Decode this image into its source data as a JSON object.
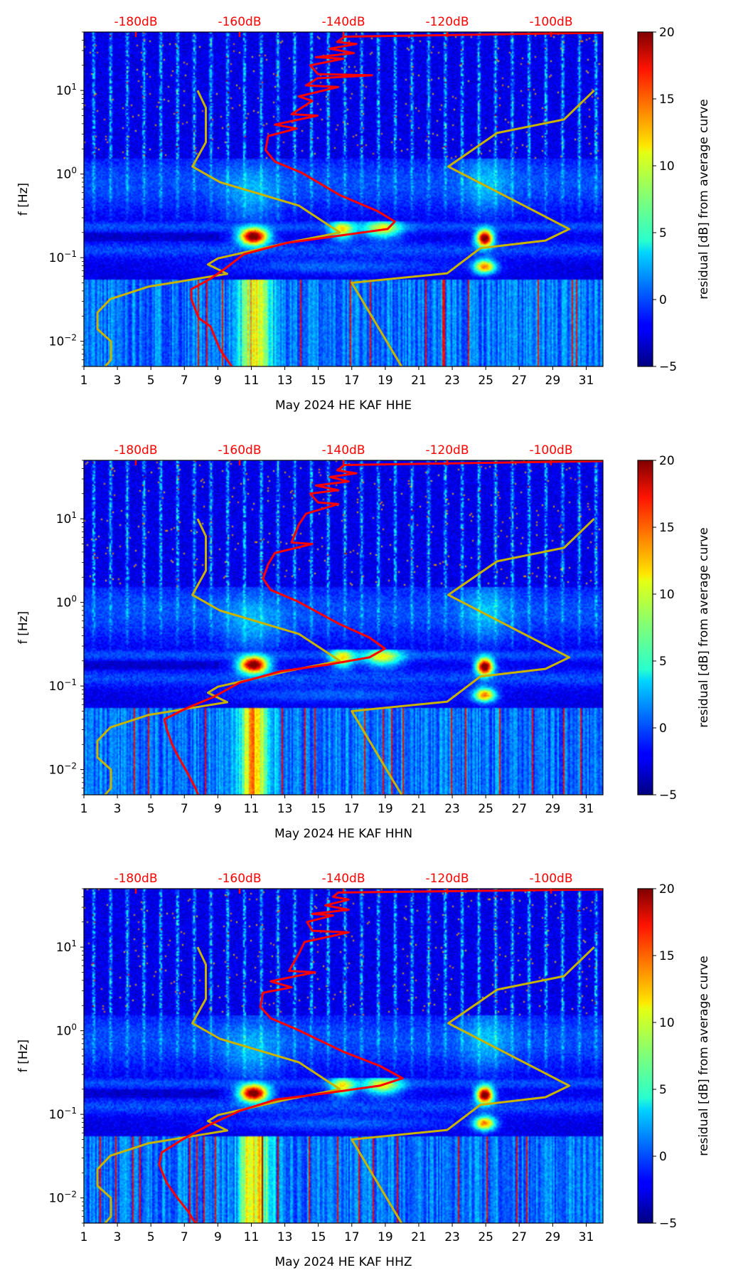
{
  "chart_data": [
    {
      "type": "heatmap",
      "xlabel": "May 2024 HE KAF  HHE",
      "ylabel": "f [Hz]",
      "xlim": [
        1,
        32
      ],
      "ylim": [
        0.005,
        50
      ],
      "yscale": "log",
      "xticks": [
        "1",
        "3",
        "5",
        "7",
        "9",
        "11",
        "13",
        "15",
        "17",
        "19",
        "21",
        "23",
        "25",
        "27",
        "29",
        "31"
      ],
      "yticks": [
        {
          "base": "10",
          "exp": "1",
          "value": 10
        },
        {
          "base": "10",
          "exp": "0",
          "value": 1
        },
        {
          "base": "10",
          "exp": "−1",
          "value": 0.1
        },
        {
          "base": "10",
          "exp": "−2",
          "value": 0.01
        }
      ],
      "top_axis": {
        "range_db": [
          -190,
          -90
        ],
        "ticks": [
          {
            "label": "-180dB",
            "value": -180
          },
          {
            "label": "-160dB",
            "value": -160
          },
          {
            "label": "-140dB",
            "value": -140
          },
          {
            "label": "-120dB",
            "value": -120
          },
          {
            "label": "-100dB",
            "value": -100
          }
        ],
        "color": "#ff0000"
      },
      "colorbar": {
        "label": "residual [dB] from average curve",
        "range": [
          -5,
          20
        ],
        "ticks": [
          "20",
          "15",
          "10",
          "5",
          "0",
          "−5"
        ],
        "colormap": "jet"
      },
      "lines": [
        {
          "role": "low-noise-model",
          "color": "#c8b400",
          "points": [
            [
              -168.1,
              10
            ],
            [
              -166.5,
              6.2
            ],
            [
              -166.5,
              2.4
            ],
            [
              -169.1,
              1.23
            ],
            [
              -163.8,
              0.8
            ],
            [
              -148.6,
              0.42
            ],
            [
              -140.7,
              0.2
            ],
            [
              -150.9,
              0.15
            ],
            [
              -164.2,
              0.098
            ],
            [
              -166.1,
              0.083
            ],
            [
              -162.4,
              0.064
            ],
            [
              -177.6,
              0.045
            ],
            [
              -184.9,
              0.032
            ],
            [
              -187.4,
              0.022
            ],
            [
              -187.4,
              0.014
            ],
            [
              -184.8,
              0.01
            ],
            [
              -184.8,
              0.006
            ],
            [
              -185.9,
              0.005
            ]
          ]
        },
        {
          "role": "high-noise-model",
          "color": "#c8b400",
          "points": [
            [
              -91.7,
              10
            ],
            [
              -97.5,
              4.5
            ],
            [
              -110.4,
              3.1
            ],
            [
              -119.8,
              1.23
            ],
            [
              -96.5,
              0.22
            ],
            [
              -101.1,
              0.16
            ],
            [
              -113.6,
              0.13
            ],
            [
              -120,
              0.065
            ],
            [
              -138.4,
              0.05
            ],
            [
              -128.8,
              0.005
            ]
          ]
        },
        {
          "role": "average-curve",
          "color": "#ff0000",
          "points": [
            [
              -90,
              49
            ],
            [
              -139.8,
              44
            ],
            [
              -141.2,
              38
            ],
            [
              -137.5,
              36
            ],
            [
              -142.6,
              31.6
            ],
            [
              -138,
              28
            ],
            [
              -145.3,
              25
            ],
            [
              -140,
              24
            ],
            [
              -146.4,
              20
            ],
            [
              -144.9,
              15.7
            ],
            [
              -134.5,
              15.2
            ],
            [
              -145,
              14
            ],
            [
              -147.2,
              11.5
            ],
            [
              -141,
              11
            ],
            [
              -148.6,
              8.5
            ],
            [
              -146,
              7.5
            ],
            [
              -150,
              5.2
            ],
            [
              -145,
              5
            ],
            [
              -153.2,
              3.9
            ],
            [
              -149,
              3.5
            ],
            [
              -154.5,
              2.85
            ],
            [
              -155,
              1.93
            ],
            [
              -153.2,
              1.41
            ],
            [
              -148.1,
              1.04
            ],
            [
              -140.7,
              0.56
            ],
            [
              -133.4,
              0.36
            ],
            [
              -130.1,
              0.27
            ],
            [
              -131.5,
              0.22
            ],
            [
              -141.7,
              0.18
            ],
            [
              -150.9,
              0.15
            ],
            [
              -159.2,
              0.11
            ],
            [
              -162.8,
              0.074
            ],
            [
              -165.6,
              0.056
            ],
            [
              -169.3,
              0.042
            ],
            [
              -169.3,
              0.032
            ],
            [
              -167.9,
              0.019
            ],
            [
              -165.6,
              0.015
            ],
            [
              -163.8,
              0.008
            ],
            [
              -161.9,
              0.0054
            ],
            [
              -161.5,
              0.005
            ]
          ]
        }
      ]
    },
    {
      "type": "heatmap",
      "xlabel": "May 2024 HE KAF  HHN",
      "ylabel": "f [Hz]",
      "xlim": [
        1,
        32
      ],
      "ylim": [
        0.005,
        50
      ],
      "yscale": "log",
      "xticks": [
        "1",
        "3",
        "5",
        "7",
        "9",
        "11",
        "13",
        "15",
        "17",
        "19",
        "21",
        "23",
        "25",
        "27",
        "29",
        "31"
      ],
      "yticks": [
        {
          "base": "10",
          "exp": "1",
          "value": 10
        },
        {
          "base": "10",
          "exp": "0",
          "value": 1
        },
        {
          "base": "10",
          "exp": "−1",
          "value": 0.1
        },
        {
          "base": "10",
          "exp": "−2",
          "value": 0.01
        }
      ],
      "top_axis": {
        "range_db": [
          -190,
          -90
        ],
        "ticks": [
          {
            "label": "-180dB",
            "value": -180
          },
          {
            "label": "-160dB",
            "value": -160
          },
          {
            "label": "-140dB",
            "value": -140
          },
          {
            "label": "-120dB",
            "value": -120
          },
          {
            "label": "-100dB",
            "value": -100
          }
        ],
        "color": "#ff0000"
      },
      "colorbar": {
        "label": "residual [dB] from average curve",
        "range": [
          -5,
          20
        ],
        "ticks": [
          "20",
          "15",
          "10",
          "5",
          "0",
          "−5"
        ],
        "colormap": "jet"
      },
      "lines": [
        {
          "role": "low-noise-model",
          "color": "#c8b400",
          "points": [
            [
              -168.1,
              10
            ],
            [
              -166.5,
              6.2
            ],
            [
              -166.5,
              2.4
            ],
            [
              -169.1,
              1.23
            ],
            [
              -163.8,
              0.8
            ],
            [
              -148.6,
              0.42
            ],
            [
              -140.7,
              0.2
            ],
            [
              -150.9,
              0.15
            ],
            [
              -164.2,
              0.098
            ],
            [
              -166.1,
              0.083
            ],
            [
              -162.4,
              0.064
            ],
            [
              -177.6,
              0.045
            ],
            [
              -184.9,
              0.032
            ],
            [
              -187.4,
              0.022
            ],
            [
              -187.4,
              0.014
            ],
            [
              -184.8,
              0.01
            ],
            [
              -184.8,
              0.006
            ],
            [
              -185.9,
              0.005
            ]
          ]
        },
        {
          "role": "high-noise-model",
          "color": "#c8b400",
          "points": [
            [
              -91.7,
              10
            ],
            [
              -97.5,
              4.5
            ],
            [
              -110.4,
              3.1
            ],
            [
              -119.8,
              1.23
            ],
            [
              -96.5,
              0.22
            ],
            [
              -101.1,
              0.16
            ],
            [
              -113.6,
              0.13
            ],
            [
              -120,
              0.065
            ],
            [
              -138.4,
              0.05
            ],
            [
              -128.8,
              0.005
            ]
          ]
        },
        {
          "role": "average-curve",
          "color": "#ff0000",
          "points": [
            [
              -90,
              49
            ],
            [
              -139.8,
              44
            ],
            [
              -141.2,
              38
            ],
            [
              -137.5,
              35
            ],
            [
              -142.6,
              31.6
            ],
            [
              -139,
              28
            ],
            [
              -145.3,
              25
            ],
            [
              -141,
              22
            ],
            [
              -146.4,
              20
            ],
            [
              -144.9,
              15.7
            ],
            [
              -141,
              15
            ],
            [
              -147.2,
              11.5
            ],
            [
              -148.6,
              8.5
            ],
            [
              -150,
              5.2
            ],
            [
              -146,
              5
            ],
            [
              -153.2,
              3.9
            ],
            [
              -154.5,
              2.85
            ],
            [
              -155.5,
              1.93
            ],
            [
              -154,
              1.41
            ],
            [
              -149,
              1.04
            ],
            [
              -141,
              0.56
            ],
            [
              -135,
              0.38
            ],
            [
              -132,
              0.28
            ],
            [
              -135,
              0.22
            ],
            [
              -143,
              0.18
            ],
            [
              -152,
              0.15
            ],
            [
              -160,
              0.11
            ],
            [
              -165,
              0.074
            ],
            [
              -170,
              0.055
            ],
            [
              -174.5,
              0.04
            ],
            [
              -174,
              0.03
            ],
            [
              -173,
              0.02
            ],
            [
              -172,
              0.015
            ],
            [
              -170,
              0.009
            ],
            [
              -168.5,
              0.006
            ],
            [
              -168,
              0.005
            ]
          ]
        }
      ]
    },
    {
      "type": "heatmap",
      "xlabel": "May 2024 HE KAF  HHZ",
      "ylabel": "f [Hz]",
      "xlim": [
        1,
        32
      ],
      "ylim": [
        0.005,
        50
      ],
      "yscale": "log",
      "xticks": [
        "1",
        "3",
        "5",
        "7",
        "9",
        "11",
        "13",
        "15",
        "17",
        "19",
        "21",
        "23",
        "25",
        "27",
        "29",
        "31"
      ],
      "yticks": [
        {
          "base": "10",
          "exp": "1",
          "value": 10
        },
        {
          "base": "10",
          "exp": "0",
          "value": 1
        },
        {
          "base": "10",
          "exp": "−1",
          "value": 0.1
        },
        {
          "base": "10",
          "exp": "−2",
          "value": 0.01
        }
      ],
      "top_axis": {
        "range_db": [
          -190,
          -90
        ],
        "ticks": [
          {
            "label": "-180dB",
            "value": -180
          },
          {
            "label": "-160dB",
            "value": -160
          },
          {
            "label": "-140dB",
            "value": -140
          },
          {
            "label": "-120dB",
            "value": -120
          },
          {
            "label": "-100dB",
            "value": -100
          }
        ],
        "color": "#ff0000"
      },
      "colorbar": {
        "label": "residual [dB] from average curve",
        "range": [
          -5,
          20
        ],
        "ticks": [
          "20",
          "15",
          "10",
          "5",
          "0",
          "−5"
        ],
        "colormap": "jet"
      },
      "lines": [
        {
          "role": "low-noise-model",
          "color": "#c8b400",
          "points": [
            [
              -168.1,
              10
            ],
            [
              -166.5,
              6.2
            ],
            [
              -166.5,
              2.4
            ],
            [
              -169.1,
              1.23
            ],
            [
              -163.8,
              0.8
            ],
            [
              -148.6,
              0.42
            ],
            [
              -140.7,
              0.2
            ],
            [
              -150.9,
              0.15
            ],
            [
              -164.2,
              0.098
            ],
            [
              -166.1,
              0.083
            ],
            [
              -162.4,
              0.064
            ],
            [
              -177.6,
              0.045
            ],
            [
              -184.9,
              0.032
            ],
            [
              -187.4,
              0.022
            ],
            [
              -187.4,
              0.014
            ],
            [
              -184.8,
              0.01
            ],
            [
              -184.8,
              0.006
            ],
            [
              -185.9,
              0.005
            ]
          ]
        },
        {
          "role": "high-noise-model",
          "color": "#c8b400",
          "points": [
            [
              -91.7,
              10
            ],
            [
              -97.5,
              4.5
            ],
            [
              -110.4,
              3.1
            ],
            [
              -119.8,
              1.23
            ],
            [
              -96.5,
              0.22
            ],
            [
              -101.1,
              0.16
            ],
            [
              -113.6,
              0.13
            ],
            [
              -120,
              0.065
            ],
            [
              -138.4,
              0.05
            ],
            [
              -128.8,
              0.005
            ]
          ]
        },
        {
          "role": "average-curve",
          "color": "#ff0000",
          "points": [
            [
              -90,
              49
            ],
            [
              -141,
              45
            ],
            [
              -142,
              40
            ],
            [
              -139,
              37
            ],
            [
              -143.5,
              31.6
            ],
            [
              -139,
              28
            ],
            [
              -146,
              25
            ],
            [
              -142,
              24
            ],
            [
              -147,
              20
            ],
            [
              -146,
              15.7
            ],
            [
              -139,
              15
            ],
            [
              -147.5,
              11.5
            ],
            [
              -148.5,
              8.5
            ],
            [
              -150.5,
              5.2
            ],
            [
              -145.5,
              5
            ],
            [
              -154,
              3.9
            ],
            [
              -150,
              3.3
            ],
            [
              -155.5,
              2.85
            ],
            [
              -156,
              1.93
            ],
            [
              -154,
              1.41
            ],
            [
              -149,
              1.04
            ],
            [
              -140,
              0.56
            ],
            [
              -133,
              0.38
            ],
            [
              -128.6,
              0.27
            ],
            [
              -133,
              0.22
            ],
            [
              -143,
              0.18
            ],
            [
              -153,
              0.15
            ],
            [
              -160,
              0.11
            ],
            [
              -166,
              0.074
            ],
            [
              -171,
              0.05
            ],
            [
              -175,
              0.035
            ],
            [
              -175.5,
              0.025
            ],
            [
              -174,
              0.015
            ],
            [
              -172,
              0.01
            ],
            [
              -170,
              0.007
            ],
            [
              -168.5,
              0.005
            ]
          ]
        }
      ]
    }
  ]
}
